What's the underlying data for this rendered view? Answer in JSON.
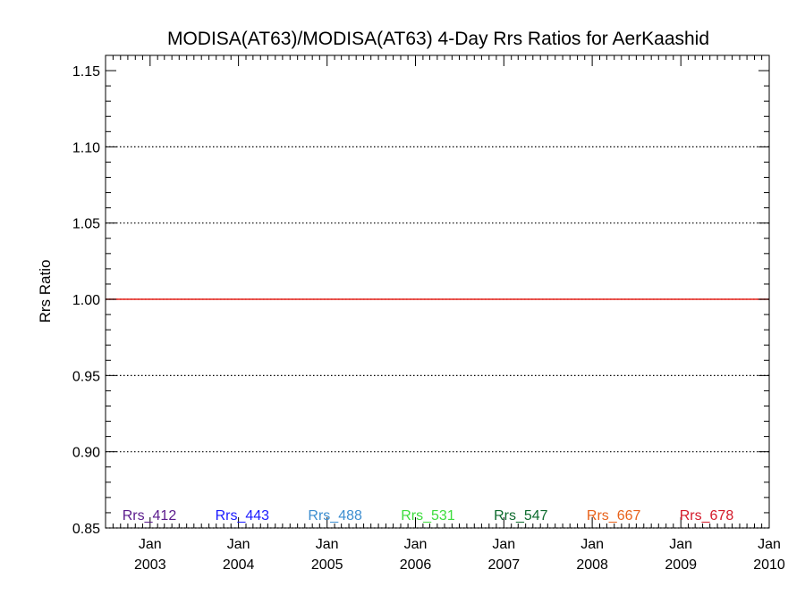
{
  "chart_data": {
    "type": "line",
    "title": "MODISA(AT63)/MODISA(AT63) 4-Day Rrs Ratios for AerKaashid",
    "xlabel": "",
    "ylabel": "Rrs Ratio",
    "x_ticks": [
      {
        "month": "Jan",
        "year": "2003"
      },
      {
        "month": "Jan",
        "year": "2004"
      },
      {
        "month": "Jan",
        "year": "2005"
      },
      {
        "month": "Jan",
        "year": "2006"
      },
      {
        "month": "Jan",
        "year": "2007"
      },
      {
        "month": "Jan",
        "year": "2008"
      },
      {
        "month": "Jan",
        "year": "2009"
      },
      {
        "month": "Jan",
        "year": "2010"
      }
    ],
    "xlim": [
      "2002-07-01",
      "2010-01-01"
    ],
    "ylim": [
      0.85,
      1.16
    ],
    "y_ticks": [
      "0.85",
      "0.90",
      "0.95",
      "1.00",
      "1.05",
      "1.10",
      "1.15"
    ],
    "y_gridlines": [
      0.85,
      0.9,
      0.95,
      1.0,
      1.05,
      1.1
    ],
    "grid_style": "dotted",
    "reference_line": {
      "y": 1.0,
      "color": "#e8221a"
    },
    "legend_placement": "bottom",
    "series": [
      {
        "name": "Rrs_412",
        "color": "#5a1a8c",
        "values": []
      },
      {
        "name": "Rrs_443",
        "color": "#1a1aff",
        "values": []
      },
      {
        "name": "Rrs_488",
        "color": "#3d8ed0",
        "values": []
      },
      {
        "name": "Rrs_531",
        "color": "#3ddc3d",
        "values": []
      },
      {
        "name": "Rrs_547",
        "color": "#0e6b2e",
        "values": []
      },
      {
        "name": "Rrs_667",
        "color": "#e8621a",
        "values": []
      },
      {
        "name": "Rrs_678",
        "color": "#d41a2a",
        "values": []
      }
    ]
  }
}
